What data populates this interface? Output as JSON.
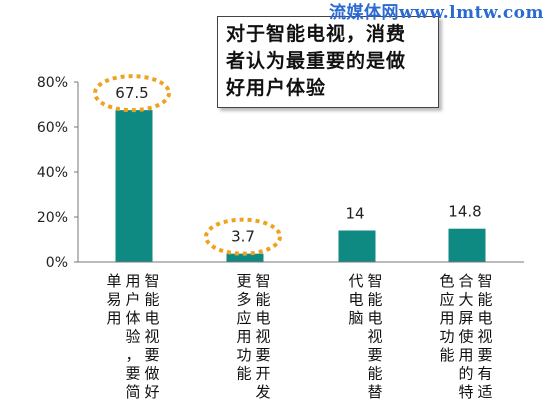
{
  "watermark": "流媒体网www.lmtw.com",
  "callout": {
    "lines": [
      "对于智能电视，消费",
      "者认为最重要的是做",
      "好用户体验"
    ]
  },
  "colors": {
    "bar": "#0f8a83",
    "highlight": "#f0a21f"
  },
  "chart_data": {
    "type": "bar",
    "ylim": [
      0,
      80
    ],
    "y_ticks": [
      "0%",
      "20%",
      "40%",
      "60%",
      "80%"
    ],
    "categories": [
      "智能电视要做好用户体验，要简单易用",
      "智能电视要开发更多应用功能",
      "智能电视要能替代电脑",
      "智能电视要有适合大屏使用的特色应用功能"
    ],
    "category_columns": [
      [
        "智能电视要做好",
        "用户体验，要简",
        "单易用"
      ],
      [
        "智能电视要开发",
        "更多应用功能"
      ],
      [
        "智能电视要能替",
        "代电脑"
      ],
      [
        "智能电视要有适",
        "合大屏使用的特",
        "色应用功能"
      ]
    ],
    "values": [
      67.5,
      3.7,
      14,
      14.8
    ],
    "data_labels": [
      "67.5",
      "3.7",
      "14",
      "14.8"
    ],
    "highlighted": [
      true,
      true,
      false,
      false
    ],
    "xlabel": "",
    "ylabel": "",
    "grid": false,
    "legend": "none"
  }
}
